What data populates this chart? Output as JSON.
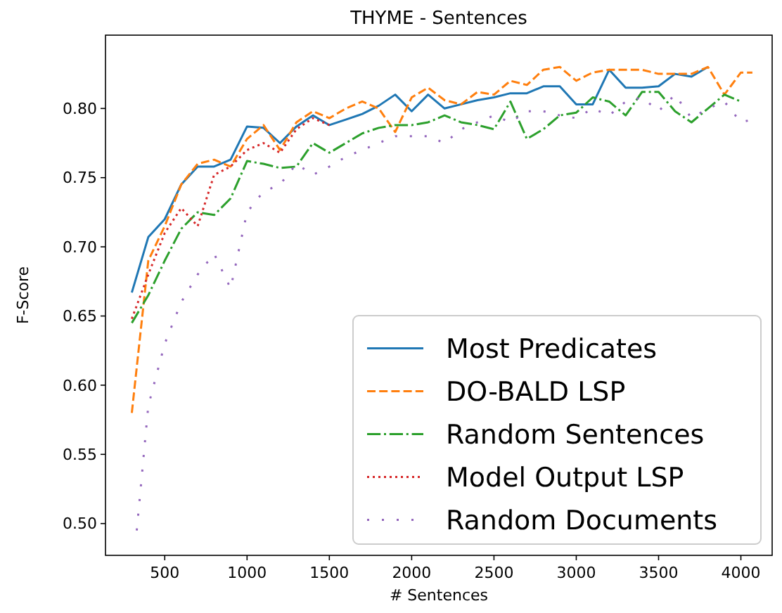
{
  "chart_data": {
    "type": "line",
    "title": "THYME - Sentences",
    "xlabel": "# Sentences",
    "ylabel": "F-Score",
    "xlim": [
      140,
      4190
    ],
    "ylim": [
      0.477,
      0.853
    ],
    "xticks": [
      500,
      1000,
      1500,
      2000,
      2500,
      3000,
      3500,
      4000
    ],
    "yticks": [
      {
        "value": 0.5,
        "label": "0.50"
      },
      {
        "value": 0.55,
        "label": "0.55"
      },
      {
        "value": 0.6,
        "label": "0.60"
      },
      {
        "value": 0.65,
        "label": "0.65"
      },
      {
        "value": 0.7,
        "label": "0.70"
      },
      {
        "value": 0.75,
        "label": "0.75"
      },
      {
        "value": 0.8,
        "label": "0.80"
      }
    ],
    "grid": false,
    "legend": "bottom right",
    "marker": "none",
    "series": [
      {
        "name": "Most Predicates",
        "color": "#1f77b4",
        "line_style": "solid",
        "x": [
          300,
          400,
          500,
          600,
          700,
          800,
          900,
          1000,
          1100,
          1200,
          1300,
          1400,
          1500,
          1600,
          1700,
          1800,
          1900,
          2000,
          2100,
          2200,
          2300,
          2400,
          2500,
          2600,
          2700,
          2800,
          2900,
          3000,
          3100,
          3200,
          3300,
          3400,
          3500,
          3600,
          3700,
          3800
        ],
        "values": [
          0.667,
          0.707,
          0.72,
          0.745,
          0.758,
          0.758,
          0.763,
          0.787,
          0.786,
          0.775,
          0.787,
          0.795,
          0.788,
          0.792,
          0.796,
          0.802,
          0.81,
          0.798,
          0.81,
          0.8,
          0.803,
          0.806,
          0.808,
          0.811,
          0.811,
          0.816,
          0.816,
          0.803,
          0.803,
          0.828,
          0.815,
          0.815,
          0.816,
          0.825,
          0.823,
          0.83
        ]
      },
      {
        "name": "DO-BALD LSP",
        "color": "#ff7f0e",
        "line_style": "dashed",
        "x": [
          300,
          400,
          500,
          600,
          700,
          800,
          900,
          1000,
          1100,
          1200,
          1300,
          1400,
          1500,
          1600,
          1700,
          1800,
          1900,
          2000,
          2100,
          2200,
          2300,
          2400,
          2500,
          2600,
          2700,
          2800,
          2900,
          3000,
          3100,
          3200,
          3300,
          3400,
          3500,
          3600,
          3700,
          3800,
          3900,
          4000,
          4070
        ],
        "values": [
          0.58,
          0.69,
          0.715,
          0.745,
          0.76,
          0.763,
          0.758,
          0.778,
          0.788,
          0.77,
          0.79,
          0.798,
          0.793,
          0.8,
          0.805,
          0.8,
          0.783,
          0.808,
          0.815,
          0.806,
          0.803,
          0.812,
          0.81,
          0.82,
          0.817,
          0.828,
          0.83,
          0.82,
          0.826,
          0.828,
          0.828,
          0.828,
          0.825,
          0.825,
          0.825,
          0.83,
          0.81,
          0.826,
          0.826
        ]
      },
      {
        "name": "Random Sentences",
        "color": "#2ca02c",
        "line_style": "dashdot",
        "x": [
          300,
          400,
          500,
          600,
          700,
          800,
          900,
          1000,
          1100,
          1200,
          1300,
          1400,
          1500,
          1600,
          1700,
          1800,
          1900,
          2000,
          2100,
          2200,
          2300,
          2400,
          2500,
          2600,
          2700,
          2800,
          2900,
          3000,
          3100,
          3200,
          3300,
          3400,
          3500,
          3600,
          3700,
          3800,
          3900,
          4000
        ],
        "values": [
          0.645,
          0.665,
          0.69,
          0.713,
          0.725,
          0.723,
          0.735,
          0.762,
          0.76,
          0.757,
          0.758,
          0.775,
          0.768,
          0.775,
          0.782,
          0.786,
          0.788,
          0.788,
          0.79,
          0.795,
          0.79,
          0.788,
          0.785,
          0.805,
          0.778,
          0.785,
          0.795,
          0.797,
          0.808,
          0.805,
          0.795,
          0.812,
          0.812,
          0.798,
          0.79,
          0.8,
          0.81,
          0.805
        ]
      },
      {
        "name": "Model Output LSP",
        "color": "#d62728",
        "line_style": "dotted",
        "x": [
          300,
          400,
          500,
          600,
          700,
          800,
          900,
          1000,
          1100,
          1200,
          1300,
          1400,
          1500
        ],
        "values": [
          0.648,
          0.68,
          0.71,
          0.728,
          0.715,
          0.752,
          0.758,
          0.77,
          0.775,
          0.768,
          0.785,
          0.793,
          0.788
        ]
      },
      {
        "name": "Random Documents",
        "color": "#9467bd",
        "line_style": "loose dashdot",
        "x": [
          330,
          400,
          500,
          600,
          700,
          800,
          900,
          1000,
          1100,
          1200,
          1300,
          1400,
          1500,
          1600,
          1700,
          1800,
          1900,
          2000,
          2100,
          2200,
          2300,
          2400,
          2500,
          2600,
          2700,
          2800,
          2900,
          3000,
          3100,
          3200,
          3300,
          3400,
          3500,
          3600,
          3700,
          3800,
          3900,
          4000,
          4070
        ],
        "values": [
          0.495,
          0.585,
          0.63,
          0.66,
          0.68,
          0.695,
          0.67,
          0.725,
          0.74,
          0.745,
          0.76,
          0.752,
          0.758,
          0.765,
          0.77,
          0.775,
          0.78,
          0.78,
          0.78,
          0.775,
          0.785,
          0.79,
          0.795,
          0.79,
          0.798,
          0.798,
          0.795,
          0.793,
          0.8,
          0.795,
          0.805,
          0.808,
          0.798,
          0.81,
          0.793,
          0.8,
          0.805,
          0.79,
          0.792
        ]
      }
    ]
  }
}
